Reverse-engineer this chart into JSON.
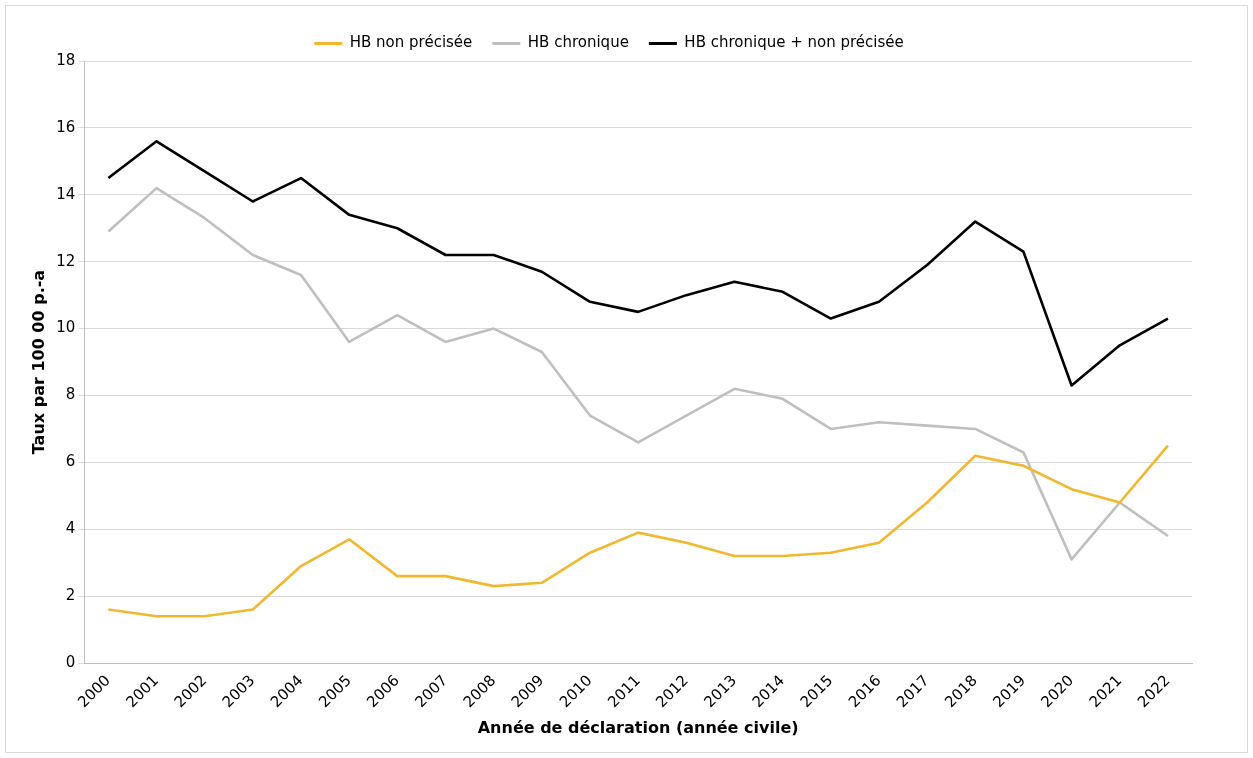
{
  "chart_data": {
    "type": "line",
    "xlabel": "Année de déclaration (année civile)",
    "ylabel": "Taux par 100 00 p.-a",
    "categories": [
      "2000",
      "2001",
      "2002",
      "2003",
      "2004",
      "2005",
      "2006",
      "2007",
      "2008",
      "2009",
      "2010",
      "2011",
      "2012",
      "2013",
      "2014",
      "2015",
      "2016",
      "2017",
      "2018",
      "2019",
      "2020",
      "2021",
      "2022"
    ],
    "series": [
      {
        "name": "HB non précisée",
        "color": "#f0b731",
        "values": [
          1.6,
          1.4,
          1.4,
          1.6,
          2.9,
          3.7,
          2.6,
          2.6,
          2.3,
          2.4,
          3.3,
          3.9,
          3.6,
          3.2,
          3.2,
          3.3,
          3.6,
          4.8,
          6.2,
          5.9,
          5.2,
          4.8,
          6.5
        ]
      },
      {
        "name": "HB chronique",
        "color": "#bfbfbf",
        "values": [
          12.9,
          14.2,
          13.3,
          12.2,
          11.6,
          9.6,
          10.4,
          9.6,
          10.0,
          9.3,
          7.4,
          6.6,
          7.4,
          8.2,
          7.9,
          7.0,
          7.2,
          7.1,
          7.0,
          6.3,
          3.1,
          4.8,
          3.8
        ]
      },
      {
        "name": "HB chronique + non précisée",
        "color": "#000000",
        "values": [
          14.5,
          15.6,
          14.7,
          13.8,
          14.5,
          13.4,
          13.0,
          12.2,
          12.2,
          11.7,
          10.8,
          10.5,
          11.0,
          11.4,
          11.1,
          10.3,
          10.8,
          11.9,
          13.2,
          12.3,
          8.3,
          9.5,
          10.3
        ]
      }
    ],
    "ylim": [
      0,
      18
    ],
    "yticks": [
      0,
      2,
      4,
      6,
      8,
      10,
      12,
      14,
      16,
      18
    ],
    "grid": "y",
    "legend": "top",
    "marker": "none",
    "line_style": "solid"
  }
}
